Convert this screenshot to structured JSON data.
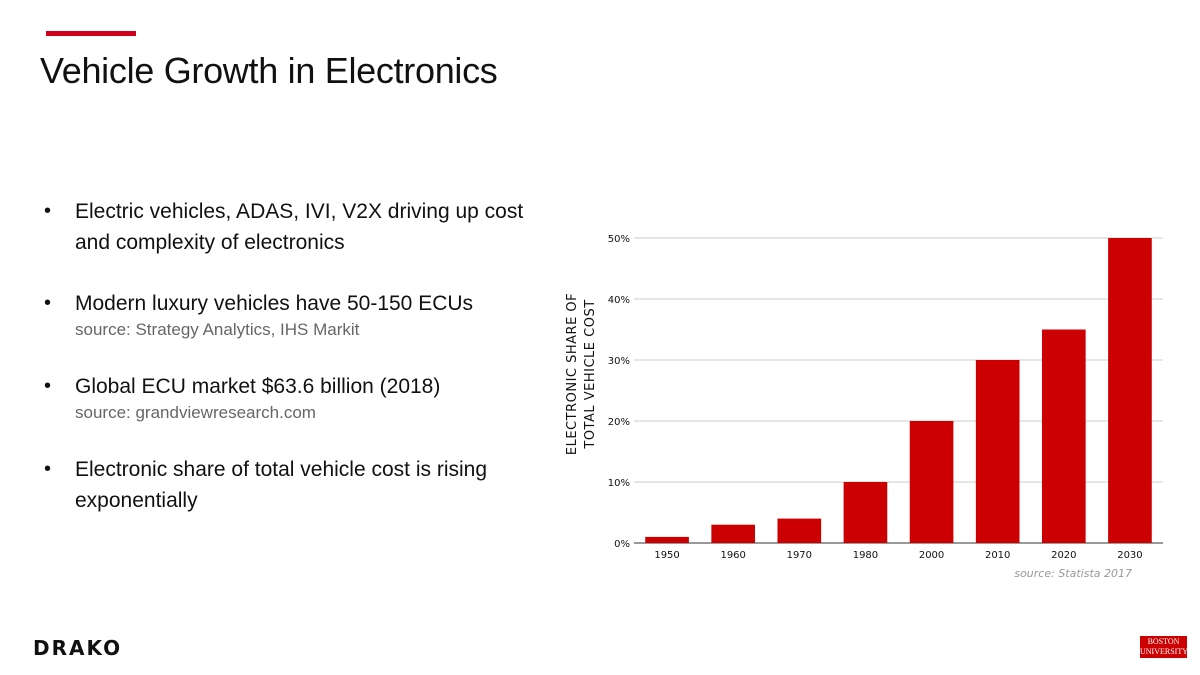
{
  "header": {
    "title": "Vehicle Growth in Electronics"
  },
  "bullets": [
    {
      "text": "Electric vehicles, ADAS, IVI, V2X driving up cost and complexity of electronics",
      "source": ""
    },
    {
      "text": "Modern luxury vehicles have 50-150 ECUs",
      "source": "source: Strategy Analytics, IHS Markit"
    },
    {
      "text": "Global ECU market $63.6 billion (2018)",
      "source": "source: grandviewresearch.com"
    },
    {
      "text": "Electronic share of total vehicle cost is rising exponentially",
      "source": ""
    }
  ],
  "chart_data": {
    "type": "bar",
    "categories": [
      "1950",
      "1960",
      "1970",
      "1980",
      "2000",
      "2010",
      "2020",
      "2030"
    ],
    "values": [
      1,
      3,
      4,
      10,
      20,
      30,
      35,
      50
    ],
    "ylabel_lines": [
      "ELECTRONIC SHARE OF",
      "TOTAL VEHICLE COST"
    ],
    "ylim": [
      0,
      50
    ],
    "yticks": [
      "0%",
      "10%",
      "20%",
      "30%",
      "40%",
      "50%"
    ],
    "grid": true,
    "bar_color": "#cc0000",
    "source_note": "source: Statista 2017"
  },
  "footer": {
    "left_logo": "DRAKO",
    "right_logo": [
      "BOSTON",
      "UNIVERSITY"
    ]
  },
  "colors": {
    "accent": "#d0021b",
    "bar": "#cc0000"
  }
}
